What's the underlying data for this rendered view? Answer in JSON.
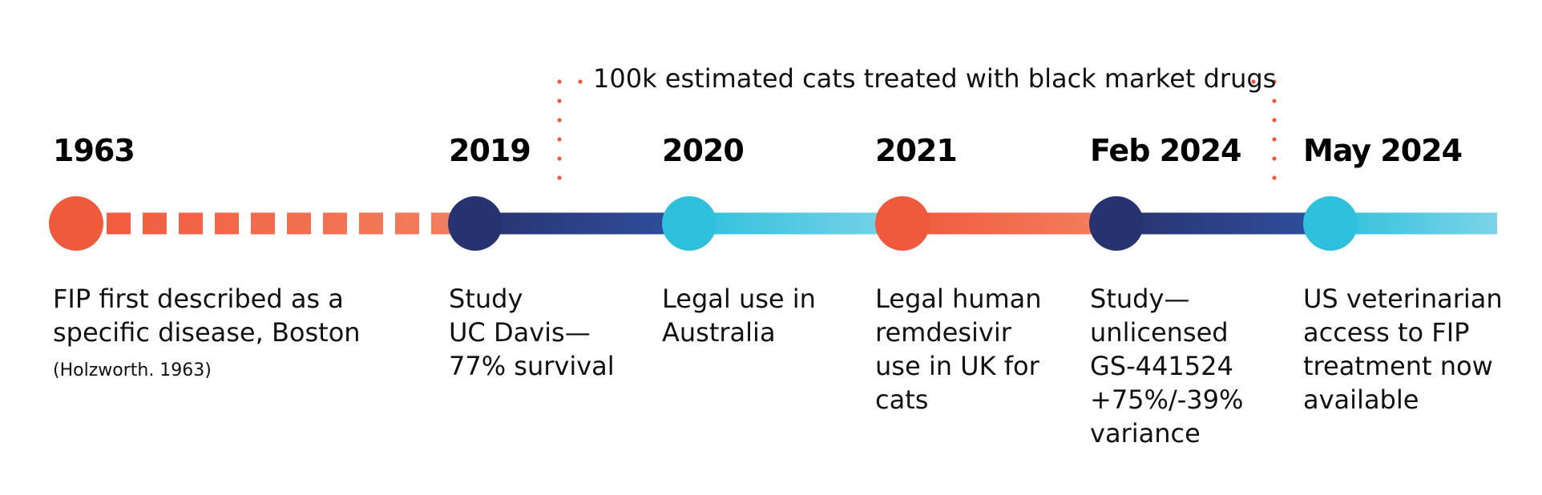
{
  "colors": {
    "coral": "#f05a3c",
    "coral_light": "#f2805f",
    "navy": "#273370",
    "navy_light": "#3050a0",
    "cyan": "#2ec0dd",
    "cyan_light": "#7cd3e8"
  },
  "bracket": {
    "label": "100k estimated cats treated with black market drugs"
  },
  "milestones": [
    {
      "year": "1963",
      "description": "FIP first described as a\nspecific disease, Boston",
      "citation": "(Holzworth. 1963)",
      "color": "coral"
    },
    {
      "year": "2019",
      "description": "Study\nUC Davis—\n77% survival",
      "color": "navy"
    },
    {
      "year": "2020",
      "description": "Legal use in\nAustralia",
      "color": "cyan"
    },
    {
      "year": "2021",
      "description": "Legal human\nremdesivir\nuse in UK for\ncats",
      "color": "coral"
    },
    {
      "year": "Feb 2024",
      "description": "Study—\nunlicensed\nGS-441524\n+75%/-39%\nvariance",
      "color": "navy"
    },
    {
      "year": "May 2024",
      "description": "US veterinarian\naccess to FIP\ntreatment now\navailable",
      "color": "cyan"
    }
  ],
  "segments": [
    {
      "from": 0,
      "style": "dashed",
      "gradient": [
        "coral",
        "coral_light"
      ]
    },
    {
      "from": 1,
      "style": "solid",
      "gradient": [
        "navy",
        "navy_light"
      ]
    },
    {
      "from": 2,
      "style": "solid",
      "gradient": [
        "cyan",
        "cyan_light"
      ]
    },
    {
      "from": 3,
      "style": "solid",
      "gradient": [
        "coral",
        "coral_light"
      ]
    },
    {
      "from": 4,
      "style": "solid",
      "gradient": [
        "navy",
        "navy_light"
      ]
    },
    {
      "from": 5,
      "style": "solid",
      "gradient": [
        "cyan",
        "cyan_light"
      ]
    }
  ]
}
